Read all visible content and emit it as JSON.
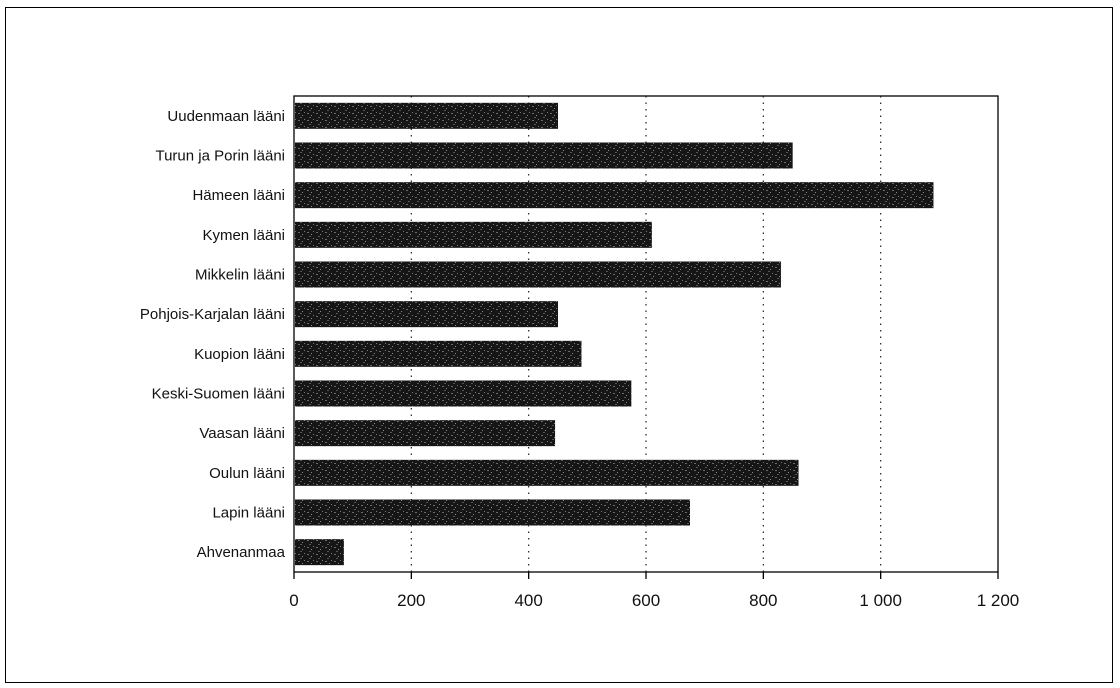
{
  "chart_data": {
    "type": "bar",
    "orientation": "horizontal",
    "title": "",
    "xlabel": "",
    "ylabel": "",
    "categories": [
      "Uudenmaan lääni",
      "Turun ja Porin lääni",
      "Hämeen lääni",
      "Kymen lääni",
      "Mikkelin lääni",
      "Pohjois-Karjalan lääni",
      "Kuopion lääni",
      "Keski-Suomen lääni",
      "Vaasan lääni",
      "Oulun lääni",
      "Lapin lääni",
      "Ahvenanmaa"
    ],
    "values": [
      450,
      850,
      1090,
      610,
      830,
      450,
      490,
      575,
      445,
      860,
      675,
      85
    ],
    "xlim": [
      0,
      1200
    ],
    "x_ticks": [
      0,
      200,
      400,
      600,
      800,
      1000,
      1200
    ],
    "x_tick_labels": [
      "0",
      "200",
      "400",
      "600",
      "800",
      "1 000",
      "1 200"
    ],
    "grid": "vertical dotted",
    "legend": "none",
    "bar_color": "#1a1a1a"
  }
}
